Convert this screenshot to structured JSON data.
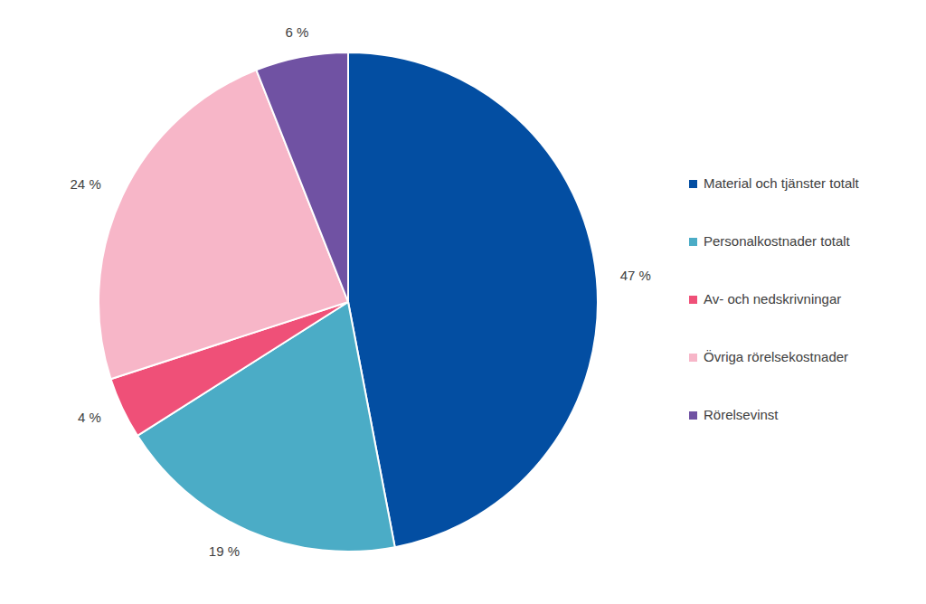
{
  "chart_data": {
    "type": "pie",
    "categories": [
      "Material och tjänster totalt",
      "Personalkostnader totalt",
      "Av- och nedskrivningar",
      "Övriga rörelsekostnader",
      "Rörelsevinst"
    ],
    "values": [
      47,
      19,
      4,
      24,
      6
    ],
    "value_labels": [
      "47 %",
      "19 %",
      "4 %",
      "24 %",
      "6 %"
    ],
    "colors": [
      "#034ea2",
      "#4bacc6",
      "#ef5078",
      "#f7b6c8",
      "#7052a3"
    ],
    "data_labels": true,
    "legend": "right"
  }
}
